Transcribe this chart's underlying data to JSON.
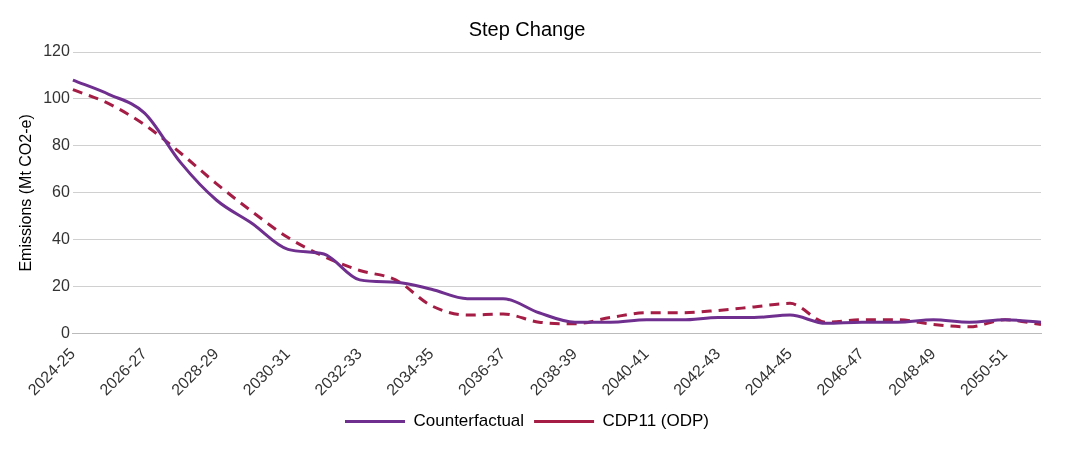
{
  "chart_data": {
    "type": "line",
    "title": "Step Change",
    "ylabel": "Emissions (Mt CO2-e)",
    "categories": [
      "2024-25",
      null,
      "2026-27",
      null,
      "2028-29",
      null,
      "2030-31",
      null,
      "2032-33",
      null,
      "2034-35",
      null,
      "2036-37",
      null,
      "2038-39",
      null,
      "2040-41",
      null,
      "2042-43",
      null,
      "2044-45",
      null,
      "2046-47",
      null,
      "2048-49",
      null,
      "2050-51",
      null
    ],
    "series": [
      {
        "name": "Counterfactual",
        "color": "#6f2f8f",
        "line_style": "solid",
        "values": [
          108,
          102,
          94,
          73,
          57,
          47,
          36,
          34,
          23,
          22,
          19,
          15,
          15,
          9,
          5,
          5,
          6,
          6,
          7,
          7,
          8,
          4.5,
          5,
          5,
          6,
          5,
          6,
          5
        ]
      },
      {
        "name": "CDP11 (ODP)",
        "color": "#a51d45",
        "line_style": "dashed",
        "values": [
          104,
          98,
          89,
          77,
          64,
          52,
          41,
          33,
          27,
          23,
          12,
          8,
          8.5,
          5,
          4.3,
          7,
          9,
          9,
          10,
          11.5,
          13,
          5,
          6,
          6,
          4,
          3,
          6,
          4
        ]
      }
    ],
    "ylim": [
      0,
      120
    ],
    "yticks": [
      0,
      20,
      40,
      60,
      80,
      100,
      120
    ],
    "grid": "y",
    "legend": "bottom",
    "marker": "none"
  }
}
